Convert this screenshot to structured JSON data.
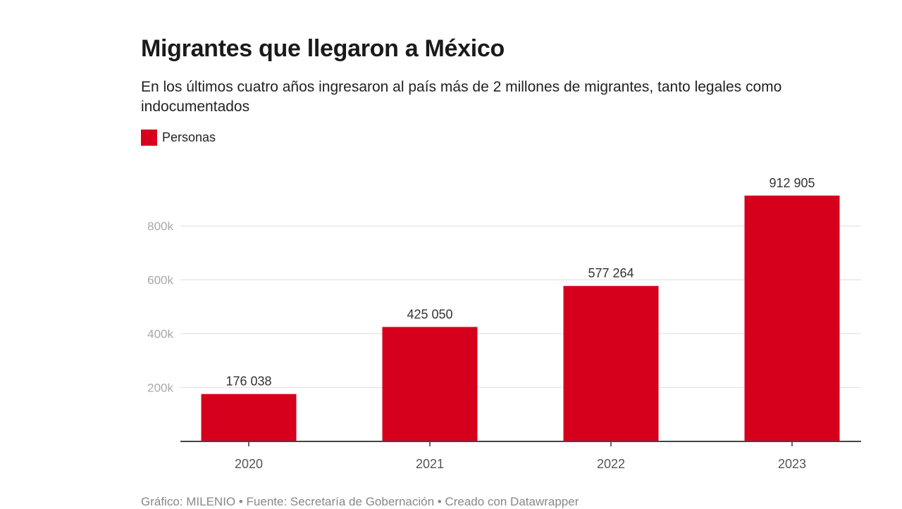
{
  "chart_data": {
    "type": "bar",
    "title": "Migrantes que llegaron a México",
    "subtitle": "En los últimos cuatro años ingresaron al país más de 2 millones de migrantes, tanto legales como indocumentados",
    "legend": [
      {
        "label": "Personas",
        "color": "#d6001c"
      }
    ],
    "legend_placement": "top-left",
    "categories": [
      "2020",
      "2021",
      "2022",
      "2023"
    ],
    "series": [
      {
        "name": "Personas",
        "values": [
          176038,
          425050,
          577264,
          912905
        ],
        "color": "#d6001c"
      }
    ],
    "data_labels": [
      "176 038",
      "425 050",
      "577 264",
      "912 905"
    ],
    "y_ticks": [
      200000,
      400000,
      600000,
      800000
    ],
    "y_tick_labels": [
      "200k",
      "400k",
      "600k",
      "800k"
    ],
    "ylim": [
      0,
      1000000
    ],
    "xlabel": "",
    "ylabel": "",
    "grid": true,
    "footer": "Gráfico: MILENIO • Fuente: Secretaría de Gobernación • Creado con Datawrapper"
  }
}
